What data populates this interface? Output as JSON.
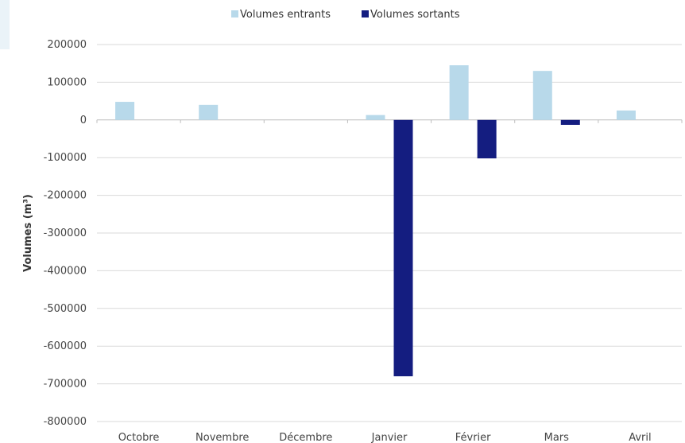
{
  "chart_data": {
    "type": "bar",
    "title": "",
    "xlabel": "",
    "ylabel": "Volumes (m³)",
    "categories": [
      "Octobre",
      "Novembre",
      "Décembre",
      "Janvier",
      "Février",
      "Mars",
      "Avril"
    ],
    "series": [
      {
        "name": "Volumes entrants",
        "color": "#b8d9ea",
        "values": [
          48000,
          40000,
          0,
          13000,
          145000,
          130000,
          25000
        ]
      },
      {
        "name": "Volumes sortants",
        "color": "#141d80",
        "values": [
          0,
          0,
          0,
          -680000,
          -102000,
          -13000,
          0
        ]
      }
    ],
    "ylim": [
      -800000,
      200000
    ],
    "yticks": [
      200000,
      100000,
      0,
      -100000,
      -200000,
      -300000,
      -400000,
      -500000,
      -600000,
      -700000,
      -800000
    ],
    "grid": true,
    "legend": "top-center"
  }
}
